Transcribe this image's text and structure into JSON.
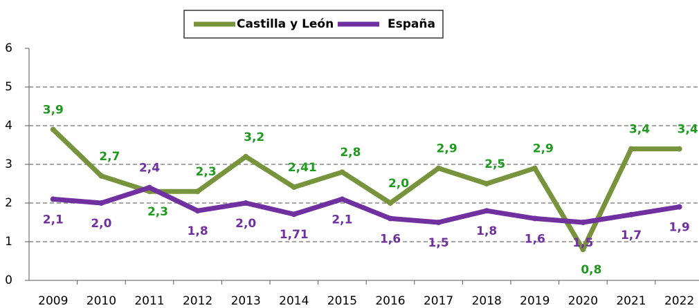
{
  "chart_data": {
    "type": "line",
    "categories": [
      "2009",
      "2010",
      "2011",
      "2012",
      "2013",
      "2014",
      "2015",
      "2016",
      "2017",
      "2018",
      "2019",
      "2020",
      "2021",
      "2022"
    ],
    "series": [
      {
        "name": "Castilla y León",
        "color": "#77933c",
        "label_color": "#1e9a1e",
        "values": [
          3.9,
          2.7,
          2.3,
          2.3,
          3.2,
          2.41,
          2.8,
          2.0,
          2.9,
          2.5,
          2.9,
          0.8,
          3.4,
          3.4
        ],
        "value_labels": [
          "3,9",
          "2,7",
          "2,3",
          "2,3",
          "3,2",
          "2,41",
          "2,8",
          "2,0",
          "2,9",
          "2,5",
          "2,9",
          "0,8",
          "3,4",
          "3,4"
        ]
      },
      {
        "name": "España",
        "color": "#7030a0",
        "label_color": "#7030a0",
        "values": [
          2.1,
          2.0,
          2.4,
          1.8,
          2.0,
          1.71,
          2.1,
          1.6,
          1.5,
          1.8,
          1.6,
          1.5,
          1.7,
          1.9
        ],
        "value_labels": [
          "2,1",
          "2,0",
          "2,4",
          "1,8",
          "2,0",
          "1,71",
          "2,1",
          "1,6",
          "1,5",
          "1,8",
          "1,6",
          "1,5",
          "1,7",
          "1,9"
        ]
      }
    ],
    "ylim": [
      0,
      6
    ],
    "yticks": [
      0,
      1,
      2,
      3,
      4,
      5,
      6
    ],
    "grid": true,
    "legend": "top"
  }
}
